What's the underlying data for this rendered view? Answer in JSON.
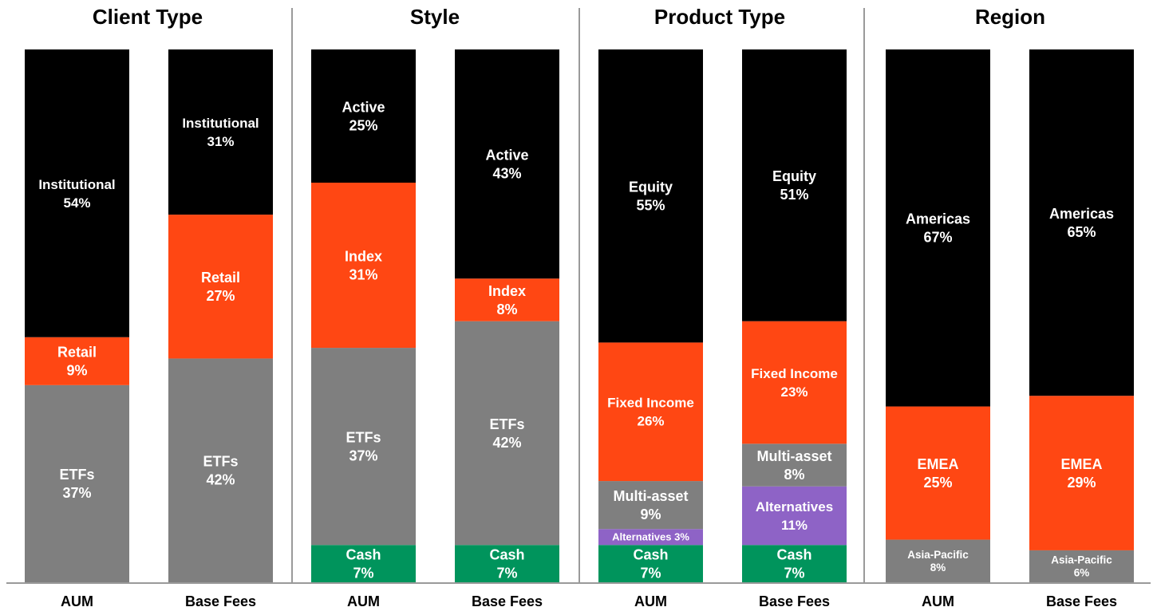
{
  "colors": {
    "black": "#000000",
    "orange": "#ff4713",
    "gray": "#7f7f7f",
    "green": "#00945c",
    "purple": "#8e63c6",
    "divider": "#9a9a9a"
  },
  "chart_data": {
    "type": "bar",
    "stacked": true,
    "normalized": true,
    "panels": [
      {
        "title": "Client Type",
        "bars": [
          {
            "label": "AUM",
            "segments": [
              {
                "name": "ETFs",
                "value": 37,
                "text": "37%",
                "color": "gray"
              },
              {
                "name": "Retail",
                "value": 9,
                "text": "9%",
                "color": "orange"
              },
              {
                "name": "Institutional",
                "value": 54,
                "text": "54%",
                "color": "black"
              }
            ]
          },
          {
            "label": "Base Fees",
            "segments": [
              {
                "name": "ETFs",
                "value": 42,
                "text": "42%",
                "color": "gray"
              },
              {
                "name": "Retail",
                "value": 27,
                "text": "27%",
                "color": "orange"
              },
              {
                "name": "Institutional",
                "value": 31,
                "text": "31%",
                "color": "black"
              }
            ]
          }
        ]
      },
      {
        "title": "Style",
        "bars": [
          {
            "label": "AUM",
            "segments": [
              {
                "name": "Cash",
                "value": 7,
                "text": "7%",
                "color": "green"
              },
              {
                "name": "ETFs",
                "value": 37,
                "text": "37%",
                "color": "gray"
              },
              {
                "name": "Index",
                "value": 31,
                "text": "31%",
                "color": "orange"
              },
              {
                "name": "Active",
                "value": 25,
                "text": "25%",
                "color": "black"
              }
            ]
          },
          {
            "label": "Base Fees",
            "segments": [
              {
                "name": "Cash",
                "value": 7,
                "text": "7%",
                "color": "green"
              },
              {
                "name": "ETFs",
                "value": 42,
                "text": "42%",
                "color": "gray"
              },
              {
                "name": "Index",
                "value": 8,
                "text": "8%",
                "color": "orange"
              },
              {
                "name": "Active",
                "value": 43,
                "text": "43%",
                "color": "black"
              }
            ]
          }
        ]
      },
      {
        "title": "Product Type",
        "bars": [
          {
            "label": "AUM",
            "segments": [
              {
                "name": "Cash",
                "value": 7,
                "text": "7%",
                "color": "green"
              },
              {
                "name": "Alternatives",
                "value": 3,
                "text": "3%",
                "color": "purple",
                "inline": true
              },
              {
                "name": "Multi-asset",
                "value": 9,
                "text": "9%",
                "color": "gray"
              },
              {
                "name": "Fixed Income",
                "value": 26,
                "text": "26%",
                "color": "orange"
              },
              {
                "name": "Equity",
                "value": 55,
                "text": "55%",
                "color": "black"
              }
            ]
          },
          {
            "label": "Base Fees",
            "segments": [
              {
                "name": "Cash",
                "value": 7,
                "text": "7%",
                "color": "green"
              },
              {
                "name": "Alternatives",
                "value": 11,
                "text": "11%",
                "color": "purple"
              },
              {
                "name": "Multi-asset",
                "value": 8,
                "text": "8%",
                "color": "gray"
              },
              {
                "name": "Fixed Income",
                "value": 23,
                "text": "23%",
                "color": "orange"
              },
              {
                "name": "Equity",
                "value": 51,
                "text": "51%",
                "color": "black"
              }
            ]
          }
        ]
      },
      {
        "title": "Region",
        "bars": [
          {
            "label": "AUM",
            "segments": [
              {
                "name": "Asia-Pacific",
                "value": 8,
                "text": "8%",
                "color": "gray",
                "small": true
              },
              {
                "name": "EMEA",
                "value": 25,
                "text": "25%",
                "color": "orange"
              },
              {
                "name": "Americas",
                "value": 67,
                "text": "67%",
                "color": "black"
              }
            ]
          },
          {
            "label": "Base Fees",
            "segments": [
              {
                "name": "Asia-Pacific",
                "value": 6,
                "text": "6%",
                "color": "gray",
                "small": true
              },
              {
                "name": "EMEA",
                "value": 29,
                "text": "29%",
                "color": "orange"
              },
              {
                "name": "Americas",
                "value": 65,
                "text": "65%",
                "color": "black"
              }
            ]
          }
        ]
      }
    ]
  }
}
